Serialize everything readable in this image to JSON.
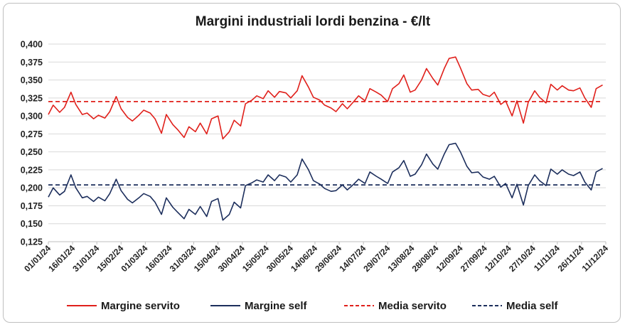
{
  "chart_data": {
    "type": "line",
    "title": "Margini industriali lordi benzina - €/lt",
    "xlabel": "",
    "ylabel": "",
    "ylim": [
      0.125,
      0.4
    ],
    "yticks": [
      "0,125",
      "0,150",
      "0,175",
      "0,200",
      "0,225",
      "0,250",
      "0,275",
      "0,300",
      "0,325",
      "0,350",
      "0,375",
      "0,400"
    ],
    "xlim": [
      "2024-01-01",
      "2024-12-11"
    ],
    "xticks": [
      "01/01/24",
      "16/01/24",
      "31/01/24",
      "15/02/24",
      "01/03/24",
      "16/03/24",
      "31/03/24",
      "15/04/24",
      "30/04/24",
      "15/05/24",
      "30/05/24",
      "14/06/24",
      "29/06/24",
      "14/07/24",
      "29/07/24",
      "13/08/24",
      "28/08/24",
      "12/09/24",
      "27/09/24",
      "12/10/24",
      "27/10/24",
      "11/11/24",
      "26/11/24",
      "11/12/24"
    ],
    "grid": "horizontal",
    "legend": "bottom",
    "series": [
      {
        "name": "Margine servito",
        "style": "solid",
        "color": "#e0201b",
        "x": [
          "2024-01-01",
          "2024-01-04",
          "2024-01-08",
          "2024-01-11",
          "2024-01-15",
          "2024-01-18",
          "2024-01-22",
          "2024-01-25",
          "2024-01-29",
          "2024-02-01",
          "2024-02-05",
          "2024-02-08",
          "2024-02-12",
          "2024-02-15",
          "2024-02-19",
          "2024-02-22",
          "2024-02-26",
          "2024-02-29",
          "2024-03-04",
          "2024-03-07",
          "2024-03-11",
          "2024-03-14",
          "2024-03-18",
          "2024-03-21",
          "2024-03-25",
          "2024-03-28",
          "2024-04-01",
          "2024-04-04",
          "2024-04-08",
          "2024-04-11",
          "2024-04-15",
          "2024-04-18",
          "2024-04-22",
          "2024-04-25",
          "2024-04-29",
          "2024-05-02",
          "2024-05-06",
          "2024-05-09",
          "2024-05-13",
          "2024-05-16",
          "2024-05-20",
          "2024-05-23",
          "2024-05-27",
          "2024-05-30",
          "2024-06-03",
          "2024-06-06",
          "2024-06-10",
          "2024-06-13",
          "2024-06-17",
          "2024-06-20",
          "2024-06-24",
          "2024-06-27",
          "2024-07-01",
          "2024-07-04",
          "2024-07-08",
          "2024-07-11",
          "2024-07-15",
          "2024-07-18",
          "2024-07-22",
          "2024-07-25",
          "2024-07-29",
          "2024-08-01",
          "2024-08-05",
          "2024-08-08",
          "2024-08-12",
          "2024-08-15",
          "2024-08-19",
          "2024-08-22",
          "2024-08-26",
          "2024-08-29",
          "2024-09-02",
          "2024-09-05",
          "2024-09-09",
          "2024-09-12",
          "2024-09-16",
          "2024-09-19",
          "2024-09-23",
          "2024-09-26",
          "2024-09-30",
          "2024-10-03",
          "2024-10-07",
          "2024-10-10",
          "2024-10-14",
          "2024-10-17",
          "2024-10-21",
          "2024-10-24",
          "2024-10-28",
          "2024-10-31",
          "2024-11-04",
          "2024-11-07",
          "2024-11-11",
          "2024-11-14",
          "2024-11-18",
          "2024-11-21",
          "2024-11-25",
          "2024-11-28",
          "2024-12-02",
          "2024-12-05",
          "2024-12-09"
        ],
        "values": [
          0.302,
          0.315,
          0.305,
          0.312,
          0.333,
          0.316,
          0.302,
          0.304,
          0.296,
          0.301,
          0.297,
          0.306,
          0.327,
          0.31,
          0.298,
          0.293,
          0.301,
          0.308,
          0.304,
          0.296,
          0.276,
          0.302,
          0.288,
          0.281,
          0.27,
          0.285,
          0.278,
          0.29,
          0.275,
          0.296,
          0.3,
          0.268,
          0.278,
          0.294,
          0.286,
          0.317,
          0.322,
          0.328,
          0.324,
          0.335,
          0.326,
          0.334,
          0.332,
          0.325,
          0.335,
          0.356,
          0.34,
          0.326,
          0.322,
          0.315,
          0.311,
          0.306,
          0.317,
          0.31,
          0.32,
          0.328,
          0.321,
          0.338,
          0.333,
          0.329,
          0.32,
          0.338,
          0.345,
          0.357,
          0.333,
          0.336,
          0.35,
          0.366,
          0.352,
          0.343,
          0.366,
          0.38,
          0.382,
          0.367,
          0.345,
          0.336,
          0.337,
          0.33,
          0.327,
          0.333,
          0.316,
          0.321,
          0.3,
          0.321,
          0.29,
          0.319,
          0.335,
          0.326,
          0.318,
          0.344,
          0.336,
          0.342,
          0.336,
          0.335,
          0.339,
          0.325,
          0.312,
          0.338,
          0.343
        ]
      },
      {
        "name": "Margine self",
        "style": "solid",
        "color": "#1c2e5c",
        "x": [
          "2024-01-01",
          "2024-01-04",
          "2024-01-08",
          "2024-01-11",
          "2024-01-15",
          "2024-01-18",
          "2024-01-22",
          "2024-01-25",
          "2024-01-29",
          "2024-02-01",
          "2024-02-05",
          "2024-02-08",
          "2024-02-12",
          "2024-02-15",
          "2024-02-19",
          "2024-02-22",
          "2024-02-26",
          "2024-02-29",
          "2024-03-04",
          "2024-03-07",
          "2024-03-11",
          "2024-03-14",
          "2024-03-18",
          "2024-03-21",
          "2024-03-25",
          "2024-03-28",
          "2024-04-01",
          "2024-04-04",
          "2024-04-08",
          "2024-04-11",
          "2024-04-15",
          "2024-04-18",
          "2024-04-22",
          "2024-04-25",
          "2024-04-29",
          "2024-05-02",
          "2024-05-06",
          "2024-05-09",
          "2024-05-13",
          "2024-05-16",
          "2024-05-20",
          "2024-05-23",
          "2024-05-27",
          "2024-05-30",
          "2024-06-03",
          "2024-06-06",
          "2024-06-10",
          "2024-06-13",
          "2024-06-17",
          "2024-06-20",
          "2024-06-24",
          "2024-06-27",
          "2024-07-01",
          "2024-07-04",
          "2024-07-08",
          "2024-07-11",
          "2024-07-15",
          "2024-07-18",
          "2024-07-22",
          "2024-07-25",
          "2024-07-29",
          "2024-08-01",
          "2024-08-05",
          "2024-08-08",
          "2024-08-12",
          "2024-08-15",
          "2024-08-19",
          "2024-08-22",
          "2024-08-26",
          "2024-08-29",
          "2024-09-02",
          "2024-09-05",
          "2024-09-09",
          "2024-09-12",
          "2024-09-16",
          "2024-09-19",
          "2024-09-23",
          "2024-09-26",
          "2024-09-30",
          "2024-10-03",
          "2024-10-07",
          "2024-10-10",
          "2024-10-14",
          "2024-10-17",
          "2024-10-21",
          "2024-10-24",
          "2024-10-28",
          "2024-10-31",
          "2024-11-04",
          "2024-11-07",
          "2024-11-11",
          "2024-11-14",
          "2024-11-18",
          "2024-11-21",
          "2024-11-25",
          "2024-11-28",
          "2024-12-02",
          "2024-12-05",
          "2024-12-09"
        ],
        "values": [
          0.187,
          0.2,
          0.19,
          0.195,
          0.218,
          0.2,
          0.186,
          0.188,
          0.181,
          0.187,
          0.182,
          0.192,
          0.212,
          0.196,
          0.184,
          0.179,
          0.186,
          0.192,
          0.188,
          0.18,
          0.163,
          0.186,
          0.173,
          0.166,
          0.157,
          0.17,
          0.163,
          0.174,
          0.16,
          0.181,
          0.185,
          0.155,
          0.163,
          0.18,
          0.172,
          0.203,
          0.207,
          0.211,
          0.208,
          0.218,
          0.21,
          0.218,
          0.215,
          0.208,
          0.218,
          0.24,
          0.225,
          0.21,
          0.205,
          0.199,
          0.195,
          0.196,
          0.204,
          0.197,
          0.205,
          0.212,
          0.206,
          0.222,
          0.216,
          0.212,
          0.206,
          0.222,
          0.228,
          0.238,
          0.216,
          0.219,
          0.232,
          0.247,
          0.233,
          0.226,
          0.247,
          0.26,
          0.262,
          0.25,
          0.23,
          0.221,
          0.222,
          0.215,
          0.212,
          0.216,
          0.201,
          0.206,
          0.186,
          0.205,
          0.176,
          0.203,
          0.218,
          0.21,
          0.203,
          0.226,
          0.219,
          0.225,
          0.219,
          0.217,
          0.222,
          0.208,
          0.197,
          0.222,
          0.227
        ]
      },
      {
        "name": "Media servito",
        "style": "dashed",
        "color": "#e0201b",
        "x": [
          "2024-01-01",
          "2024-12-09"
        ],
        "values": [
          0.32,
          0.32
        ]
      },
      {
        "name": "Media self",
        "style": "dashed",
        "color": "#1c2e5c",
        "x": [
          "2024-01-01",
          "2024-12-09"
        ],
        "values": [
          0.204,
          0.204
        ]
      }
    ]
  }
}
